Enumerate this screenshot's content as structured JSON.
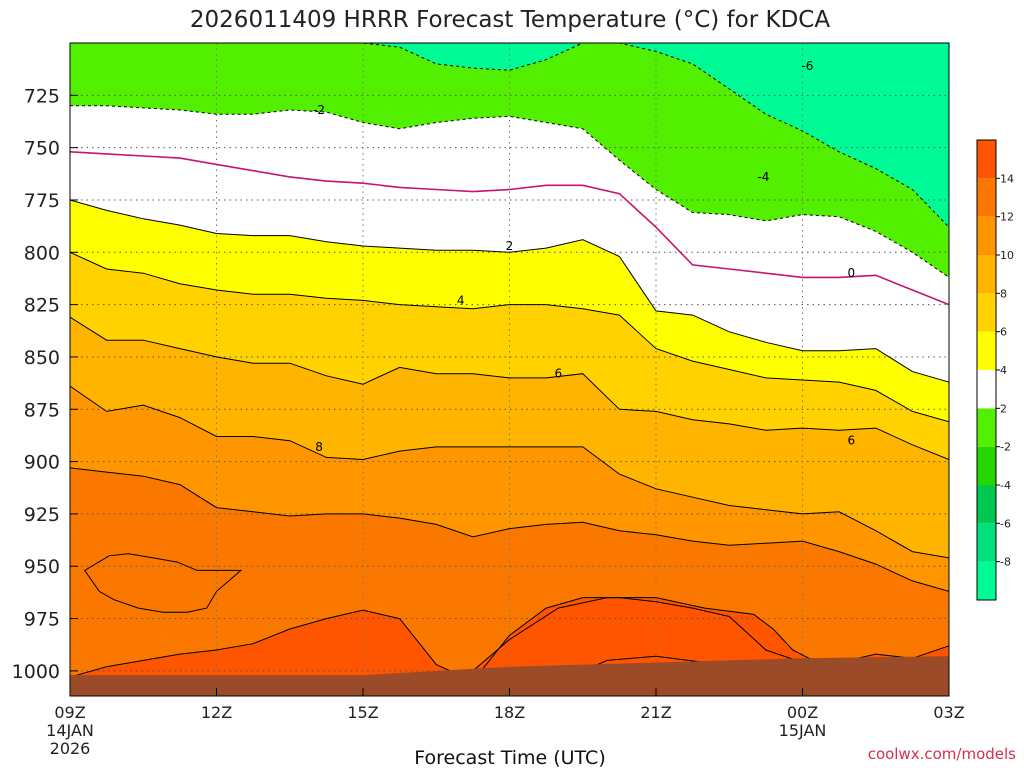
{
  "chart_data": {
    "type": "heatmap",
    "title": "2026011409 HRRR Forecast Temperature (°C) for KDCA",
    "xlabel": "Forecast Time (UTC)",
    "ylabel": "",
    "credit": "coolwx.com/models",
    "x_range_hours": [
      0,
      18
    ],
    "x_ticks": [
      {
        "hour": 0,
        "label": "09Z",
        "sub": [
          "14JAN",
          "2026"
        ]
      },
      {
        "hour": 3,
        "label": "12Z",
        "sub": []
      },
      {
        "hour": 6,
        "label": "15Z",
        "sub": []
      },
      {
        "hour": 9,
        "label": "18Z",
        "sub": []
      },
      {
        "hour": 12,
        "label": "21Z",
        "sub": []
      },
      {
        "hour": 15,
        "label": "00Z",
        "sub": [
          "15JAN"
        ]
      },
      {
        "hour": 18,
        "label": "03Z",
        "sub": []
      }
    ],
    "y_range_hpa": [
      700,
      1012
    ],
    "y_ticks": [
      725,
      750,
      775,
      800,
      825,
      850,
      875,
      900,
      925,
      950,
      975,
      1000
    ],
    "bands": [
      {
        "fill": "#00fa96",
        "boundary": null
      },
      {
        "fill": "#52f000",
        "boundary": {
          "level": -6,
          "hpa": [
            700,
            700,
            700,
            700,
            700,
            700,
            700,
            700,
            700,
            702,
            710,
            712,
            713,
            708,
            700,
            700,
            704,
            710,
            722,
            734,
            742,
            752,
            760,
            770,
            788
          ]
        }
      },
      {
        "fill": "#ffffff",
        "boundary": {
          "level": -2,
          "hpa": [
            730,
            730,
            731,
            732,
            734,
            734,
            732,
            733,
            738,
            741,
            738,
            736,
            735,
            738,
            741,
            756,
            770,
            781,
            782,
            785,
            782,
            783,
            790,
            800,
            812
          ]
        }
      },
      {
        "fill": "#ffff00",
        "boundary": {
          "level": 2,
          "hpa": [
            775,
            780,
            784,
            787,
            791,
            792,
            792,
            795,
            797,
            798,
            799,
            799,
            800,
            798,
            794,
            802,
            828,
            830,
            838,
            843,
            847,
            847,
            846,
            857,
            862
          ]
        }
      },
      {
        "fill": "#ffd200",
        "boundary": {
          "level": 4,
          "hpa": [
            800,
            808,
            810,
            815,
            818,
            820,
            820,
            822,
            823,
            825,
            826,
            827,
            825,
            825,
            827,
            830,
            846,
            852,
            856,
            860,
            861,
            862,
            866,
            876,
            881
          ]
        }
      },
      {
        "fill": "#ffb400",
        "boundary": {
          "level": 6,
          "hpa": [
            831,
            842,
            842,
            846,
            850,
            853,
            853,
            859,
            863,
            855,
            858,
            858,
            860,
            860,
            858,
            875,
            876,
            880,
            882,
            885,
            884,
            885,
            884,
            892,
            899
          ]
        }
      },
      {
        "fill": "#ff9600",
        "boundary": {
          "level": 8,
          "hpa": [
            864,
            876,
            873,
            879,
            888,
            888,
            890,
            898,
            899,
            895,
            893,
            893,
            893,
            893,
            893,
            906,
            913,
            917,
            921,
            923,
            925,
            924,
            933,
            943,
            946
          ]
        }
      },
      {
        "fill": "#fa7800",
        "boundary": {
          "level": 10,
          "hpa": [
            903,
            905,
            907,
            911,
            922,
            924,
            926,
            925,
            925,
            927,
            930,
            936,
            932,
            930,
            929,
            933,
            935,
            938,
            940,
            939,
            938,
            943,
            949,
            957,
            962
          ]
        }
      },
      {
        "fill": "#ff5500",
        "boundary": {
          "level": 12,
          "hpa": [
            1003,
            998,
            995,
            992,
            990,
            987,
            980,
            975,
            971,
            975,
            997,
            1005,
            983,
            970,
            965,
            965,
            967,
            970,
            974,
            990,
            996,
            996,
            992,
            994,
            988
          ]
        }
      }
    ],
    "blobs": [
      {
        "level": 12,
        "fill": "#fa7800",
        "points": [
          [
            0.3,
            952
          ],
          [
            0.8,
            945
          ],
          [
            1.2,
            944
          ],
          [
            1.7,
            946
          ],
          [
            2.2,
            948
          ],
          [
            2.6,
            952
          ],
          [
            3.0,
            952
          ],
          [
            3.5,
            952
          ],
          [
            3.2,
            958
          ],
          [
            3.0,
            962
          ],
          [
            2.8,
            970
          ],
          [
            2.4,
            972
          ],
          [
            1.9,
            972
          ],
          [
            1.4,
            970
          ],
          [
            0.9,
            966
          ],
          [
            0.6,
            962
          ]
        ]
      },
      {
        "level": 14,
        "fill": "#ff5500",
        "points": [
          [
            8.0,
            1005
          ],
          [
            9.0,
            985
          ],
          [
            10.0,
            970
          ],
          [
            11.0,
            965
          ],
          [
            12.0,
            965
          ],
          [
            13.0,
            970
          ],
          [
            14.0,
            973
          ],
          [
            14.4,
            980
          ],
          [
            14.8,
            990
          ],
          [
            15.3,
            996
          ],
          [
            15.6,
            1003
          ],
          [
            15.6,
            1012
          ],
          [
            8.0,
            1012
          ]
        ]
      },
      {
        "level": 14,
        "fill": "#ff5500",
        "points": [
          [
            10.5,
            1000
          ],
          [
            11.0,
            995
          ],
          [
            12.0,
            993
          ],
          [
            13.0,
            996
          ],
          [
            13.5,
            998
          ],
          [
            13.9,
            1000
          ],
          [
            14.2,
            1006
          ],
          [
            12.0,
            1008
          ],
          [
            10.5,
            1006
          ]
        ]
      }
    ],
    "line_labels": [
      {
        "text": "-2",
        "hour": 5.1,
        "hpa": 732
      },
      {
        "text": "2",
        "hour": 9.0,
        "hpa": 797
      },
      {
        "text": "4",
        "hour": 8.0,
        "hpa": 823
      },
      {
        "text": "6",
        "hour": 10.0,
        "hpa": 858
      },
      {
        "text": "8",
        "hour": 5.1,
        "hpa": 893
      },
      {
        "text": "-4",
        "hour": 14.2,
        "hpa": 764
      },
      {
        "text": "-6",
        "hour": 15.1,
        "hpa": 711
      },
      {
        "text": "0",
        "hour": 16.0,
        "hpa": 810
      },
      {
        "text": "6",
        "hour": 16.0,
        "hpa": 890
      }
    ],
    "zero_line": {
      "level": 0,
      "hpa": [
        752,
        753,
        754,
        755,
        758,
        761,
        764,
        766,
        767,
        769,
        770,
        771,
        770,
        768,
        768,
        772,
        788,
        806,
        808,
        810,
        812,
        812,
        811,
        818,
        825
      ]
    },
    "colorbar": {
      "colors": [
        "#00fa96",
        "#00e17d",
        "#00c850",
        "#27d600",
        "#52f000",
        "#ffffff",
        "#ffff00",
        "#ffd200",
        "#ffb400",
        "#ff9600",
        "#fa7800",
        "#ff5500"
      ],
      "tick_labels": [
        "-8",
        "-6",
        "-4",
        "-2",
        "2",
        "4",
        "6",
        "8",
        "10",
        "12",
        "14"
      ]
    },
    "ground_color": "#9b4b28",
    "grid": true
  }
}
